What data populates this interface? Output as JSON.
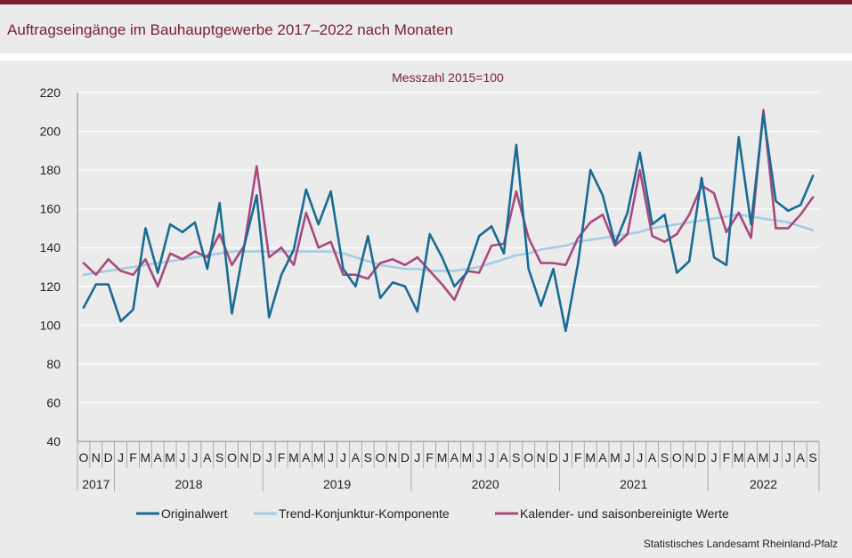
{
  "title": "Auftragseingänge im Bauhauptgewerbe 2017–2022 nach Monaten",
  "subtitle": "Messzahl 2015=100",
  "source": "Statistisches Landesamt Rheinland-Pfalz",
  "colors": {
    "accent": "#7b1e2e",
    "original": "#1a6b93",
    "trend": "#a4cde0",
    "adjusted": "#a84a7e"
  },
  "chart_data": {
    "type": "line",
    "title": "Auftragseingänge im Bauhauptgewerbe 2017–2022 nach Monaten",
    "subtitle": "Messzahl 2015=100",
    "ylim": [
      40,
      220
    ],
    "yticks": [
      40,
      60,
      80,
      100,
      120,
      140,
      160,
      180,
      200,
      220
    ],
    "months": [
      "O",
      "N",
      "D",
      "J",
      "F",
      "M",
      "A",
      "M",
      "J",
      "J",
      "A",
      "S",
      "O",
      "N",
      "D",
      "J",
      "F",
      "M",
      "A",
      "M",
      "J",
      "J",
      "A",
      "S",
      "O",
      "N",
      "D",
      "J",
      "F",
      "M",
      "A",
      "M",
      "J",
      "J",
      "A",
      "S",
      "O",
      "N",
      "D",
      "J",
      "F",
      "M",
      "A",
      "M",
      "J",
      "J",
      "A",
      "S",
      "O",
      "N",
      "D",
      "J",
      "F",
      "M",
      "A",
      "M",
      "J",
      "J",
      "A",
      "S"
    ],
    "years": [
      {
        "label": "2017",
        "start": 0,
        "end": 3
      },
      {
        "label": "2018",
        "start": 3,
        "end": 15
      },
      {
        "label": "2019",
        "start": 15,
        "end": 27
      },
      {
        "label": "2020",
        "start": 27,
        "end": 39
      },
      {
        "label": "2021",
        "start": 39,
        "end": 51
      },
      {
        "label": "2022",
        "start": 51,
        "end": 60
      }
    ],
    "legend_position": "bottom",
    "series": [
      {
        "name": "Originalwert",
        "color": "#1a6b93",
        "values": [
          109,
          121,
          121,
          102,
          108,
          150,
          127,
          152,
          148,
          153,
          129,
          163,
          106,
          141,
          167,
          104,
          126,
          139,
          170,
          152,
          169,
          129,
          120,
          146,
          114,
          122,
          120,
          107,
          147,
          135,
          120,
          127,
          146,
          151,
          137,
          193,
          129,
          110,
          129,
          97,
          132,
          180,
          167,
          142,
          158,
          189,
          152,
          157,
          127,
          133,
          176,
          135,
          131,
          197,
          152,
          209,
          164,
          159,
          162,
          177
        ]
      },
      {
        "name": "Trend-Konjunktur-Komponente",
        "color": "#a4cde0",
        "values": [
          126,
          127,
          128,
          129,
          130,
          131,
          132,
          133,
          134,
          135,
          136,
          137,
          138,
          138,
          138,
          138,
          138,
          138,
          138,
          138,
          138,
          137,
          135,
          133,
          131,
          130,
          129,
          129,
          128,
          128,
          128,
          129,
          130,
          132,
          134,
          136,
          137,
          139,
          140,
          141,
          143,
          144,
          145,
          146,
          147,
          148,
          150,
          151,
          152,
          153,
          154,
          155,
          156,
          157,
          156,
          155,
          154,
          153,
          151,
          149
        ]
      },
      {
        "name": "Kalender- und saisonbereinigte Werte",
        "color": "#a84a7e",
        "values": [
          132,
          126,
          134,
          128,
          126,
          134,
          120,
          137,
          134,
          138,
          135,
          147,
          131,
          141,
          182,
          135,
          140,
          131,
          158,
          140,
          143,
          126,
          126,
          124,
          132,
          134,
          131,
          135,
          128,
          121,
          113,
          128,
          127,
          141,
          142,
          169,
          145,
          132,
          132,
          131,
          145,
          153,
          157,
          141,
          147,
          180,
          146,
          143,
          147,
          157,
          172,
          168,
          148,
          158,
          145,
          211,
          150,
          150,
          157,
          166
        ]
      }
    ]
  }
}
